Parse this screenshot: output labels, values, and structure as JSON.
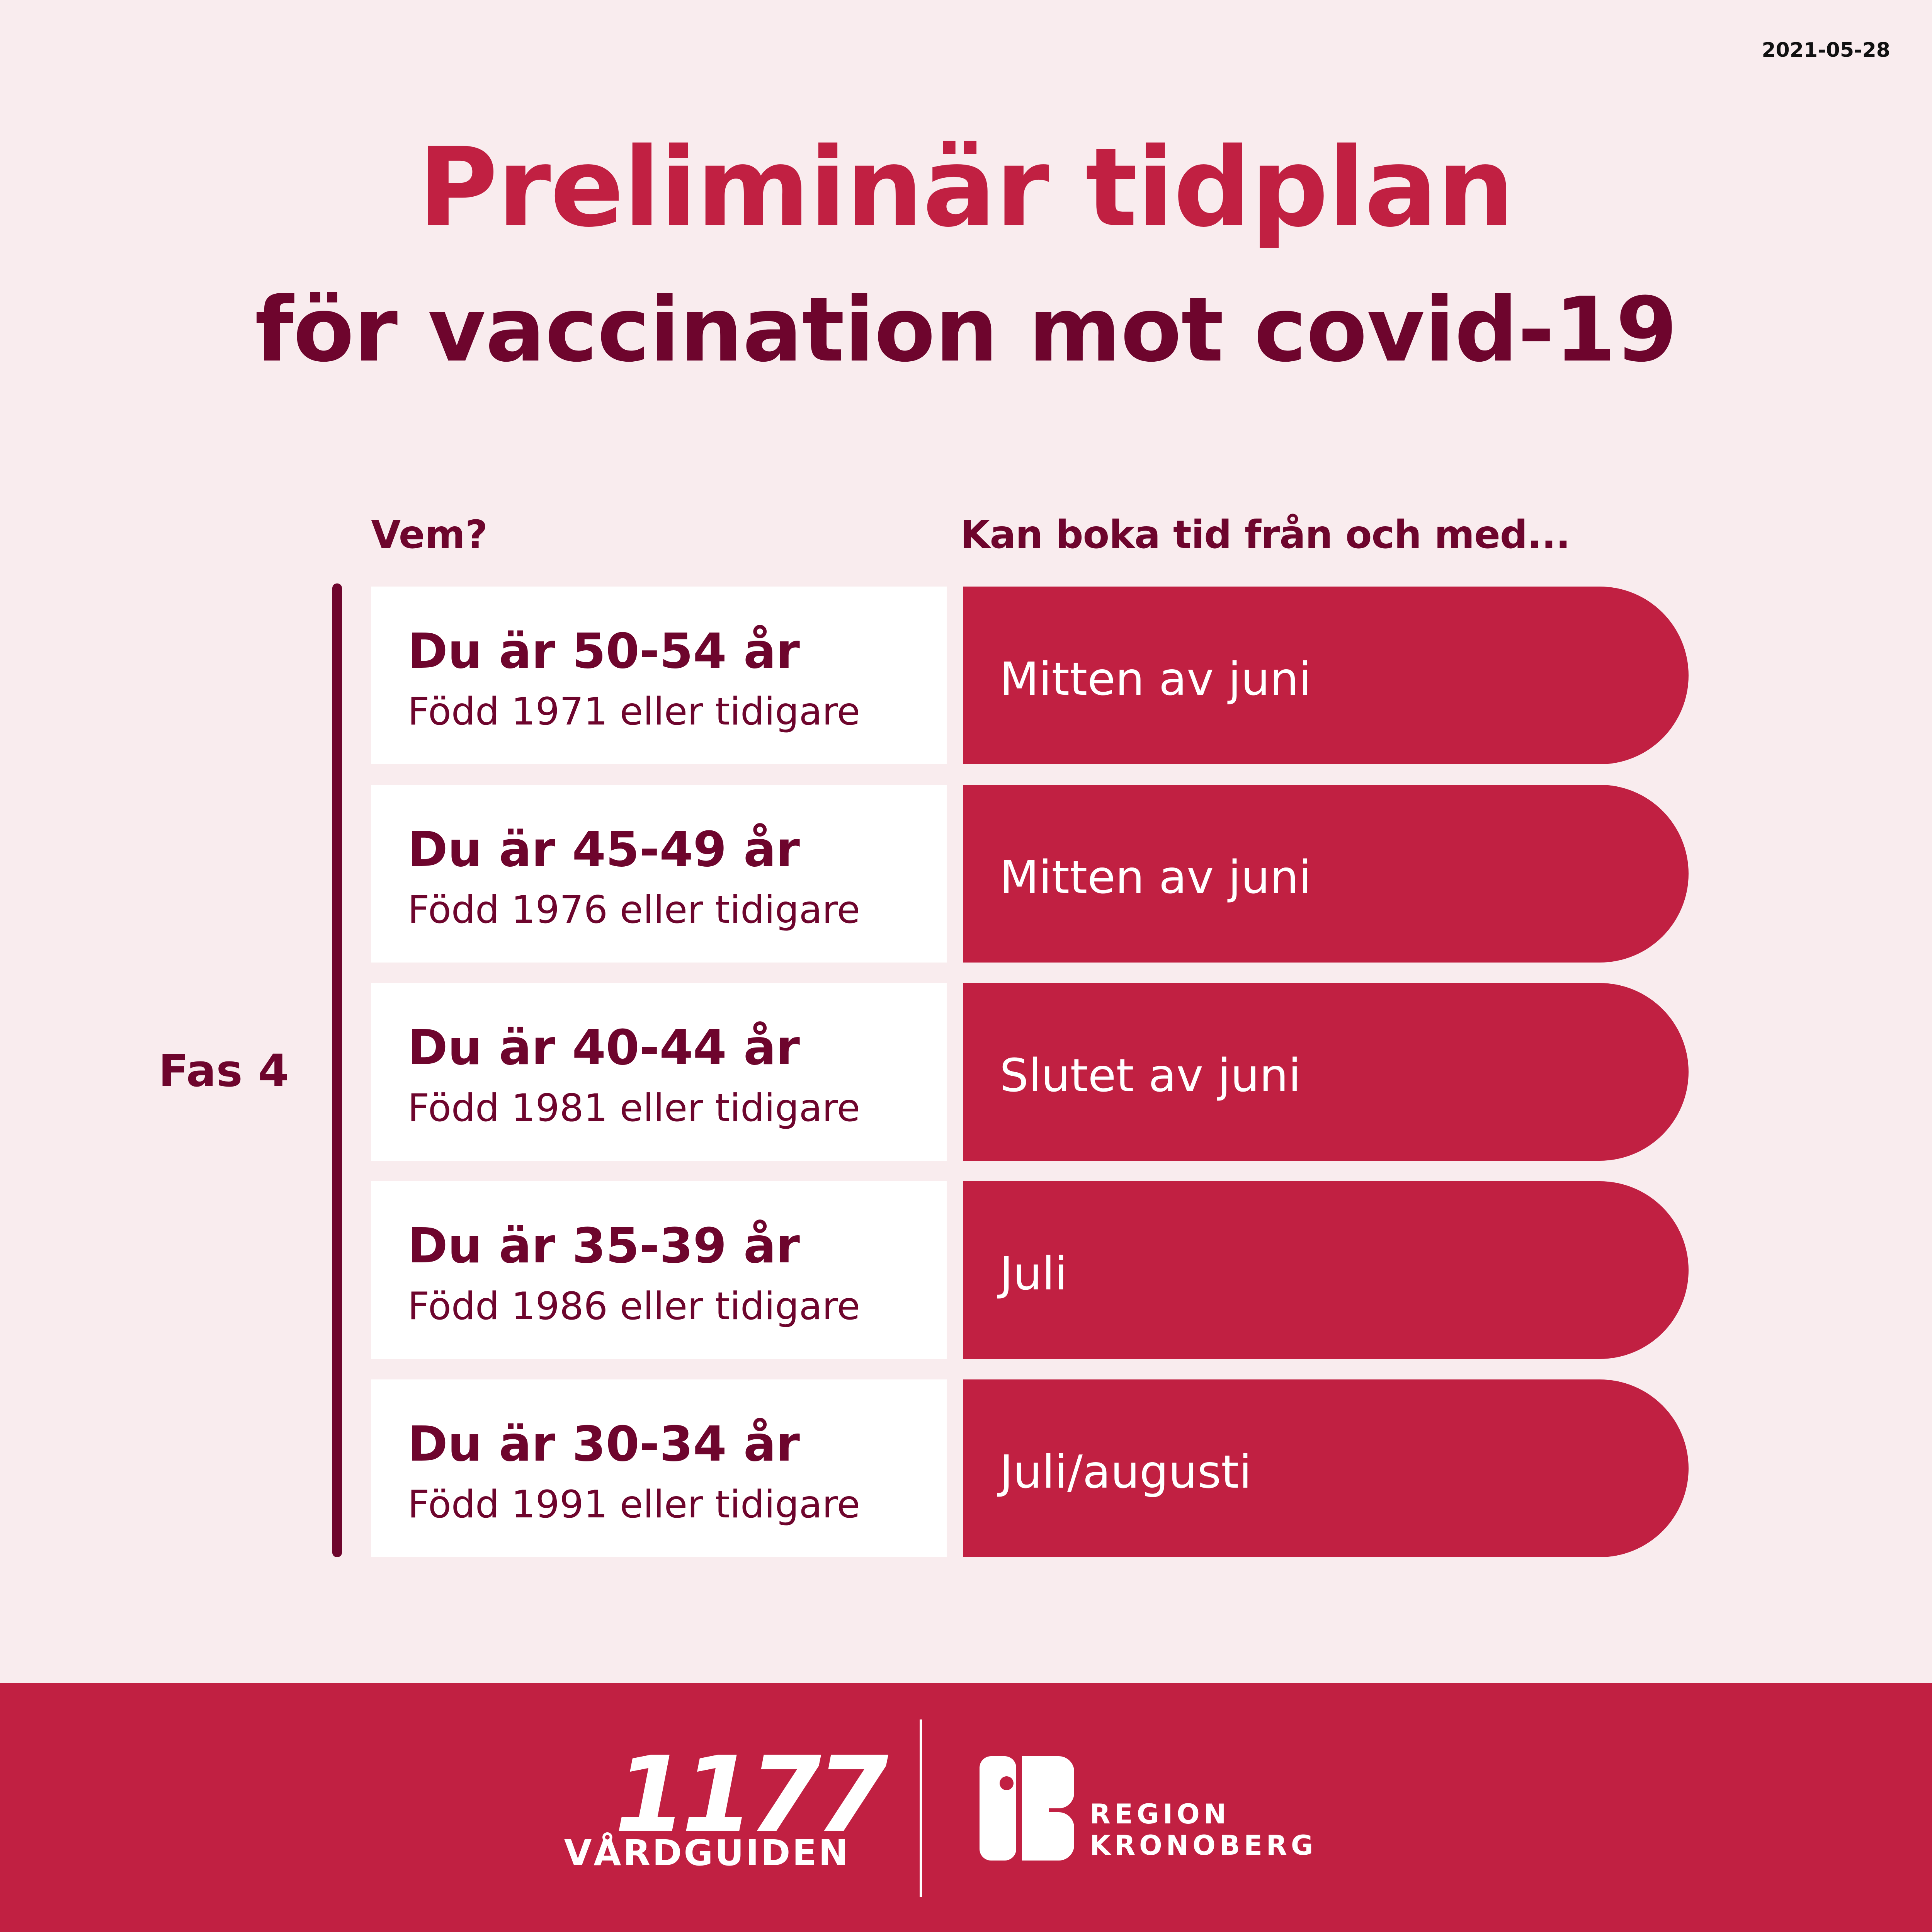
{
  "date": "2021-05-28",
  "title": "Preliminär tidplan",
  "subtitle": "för vaccination mot covid-19",
  "columns": {
    "who": "Vem?",
    "when": "Kan boka tid från och med..."
  },
  "phase_label": "Fas 4",
  "rows": [
    {
      "age": "Du är 50-54 år",
      "born": "Född 1971 eller tidigare",
      "when": "Mitten av juni"
    },
    {
      "age": "Du är 45-49 år",
      "born": "Född 1976 eller tidigare",
      "when": "Mitten av juni"
    },
    {
      "age": "Du är 40-44 år",
      "born": "Född 1981 eller tidigare",
      "when": "Slutet av juni"
    },
    {
      "age": "Du är 35-39 år",
      "born": "Född 1986 eller tidigare",
      "when": "Juli"
    },
    {
      "age": "Du är 30-34 år",
      "born": "Född 1991 eller tidigare",
      "when": "Juli/augusti"
    }
  ],
  "footer": {
    "logo_number": "1177",
    "logo_name": "VÅRDGUIDEN",
    "region_line1": "REGION",
    "region_line2": "KRONOBERG",
    "region_mark_icon": "region-kronoberg-logo-icon"
  },
  "colors": {
    "background": "#f9ecee",
    "accent": "#c12042",
    "dark": "#6e052d"
  }
}
